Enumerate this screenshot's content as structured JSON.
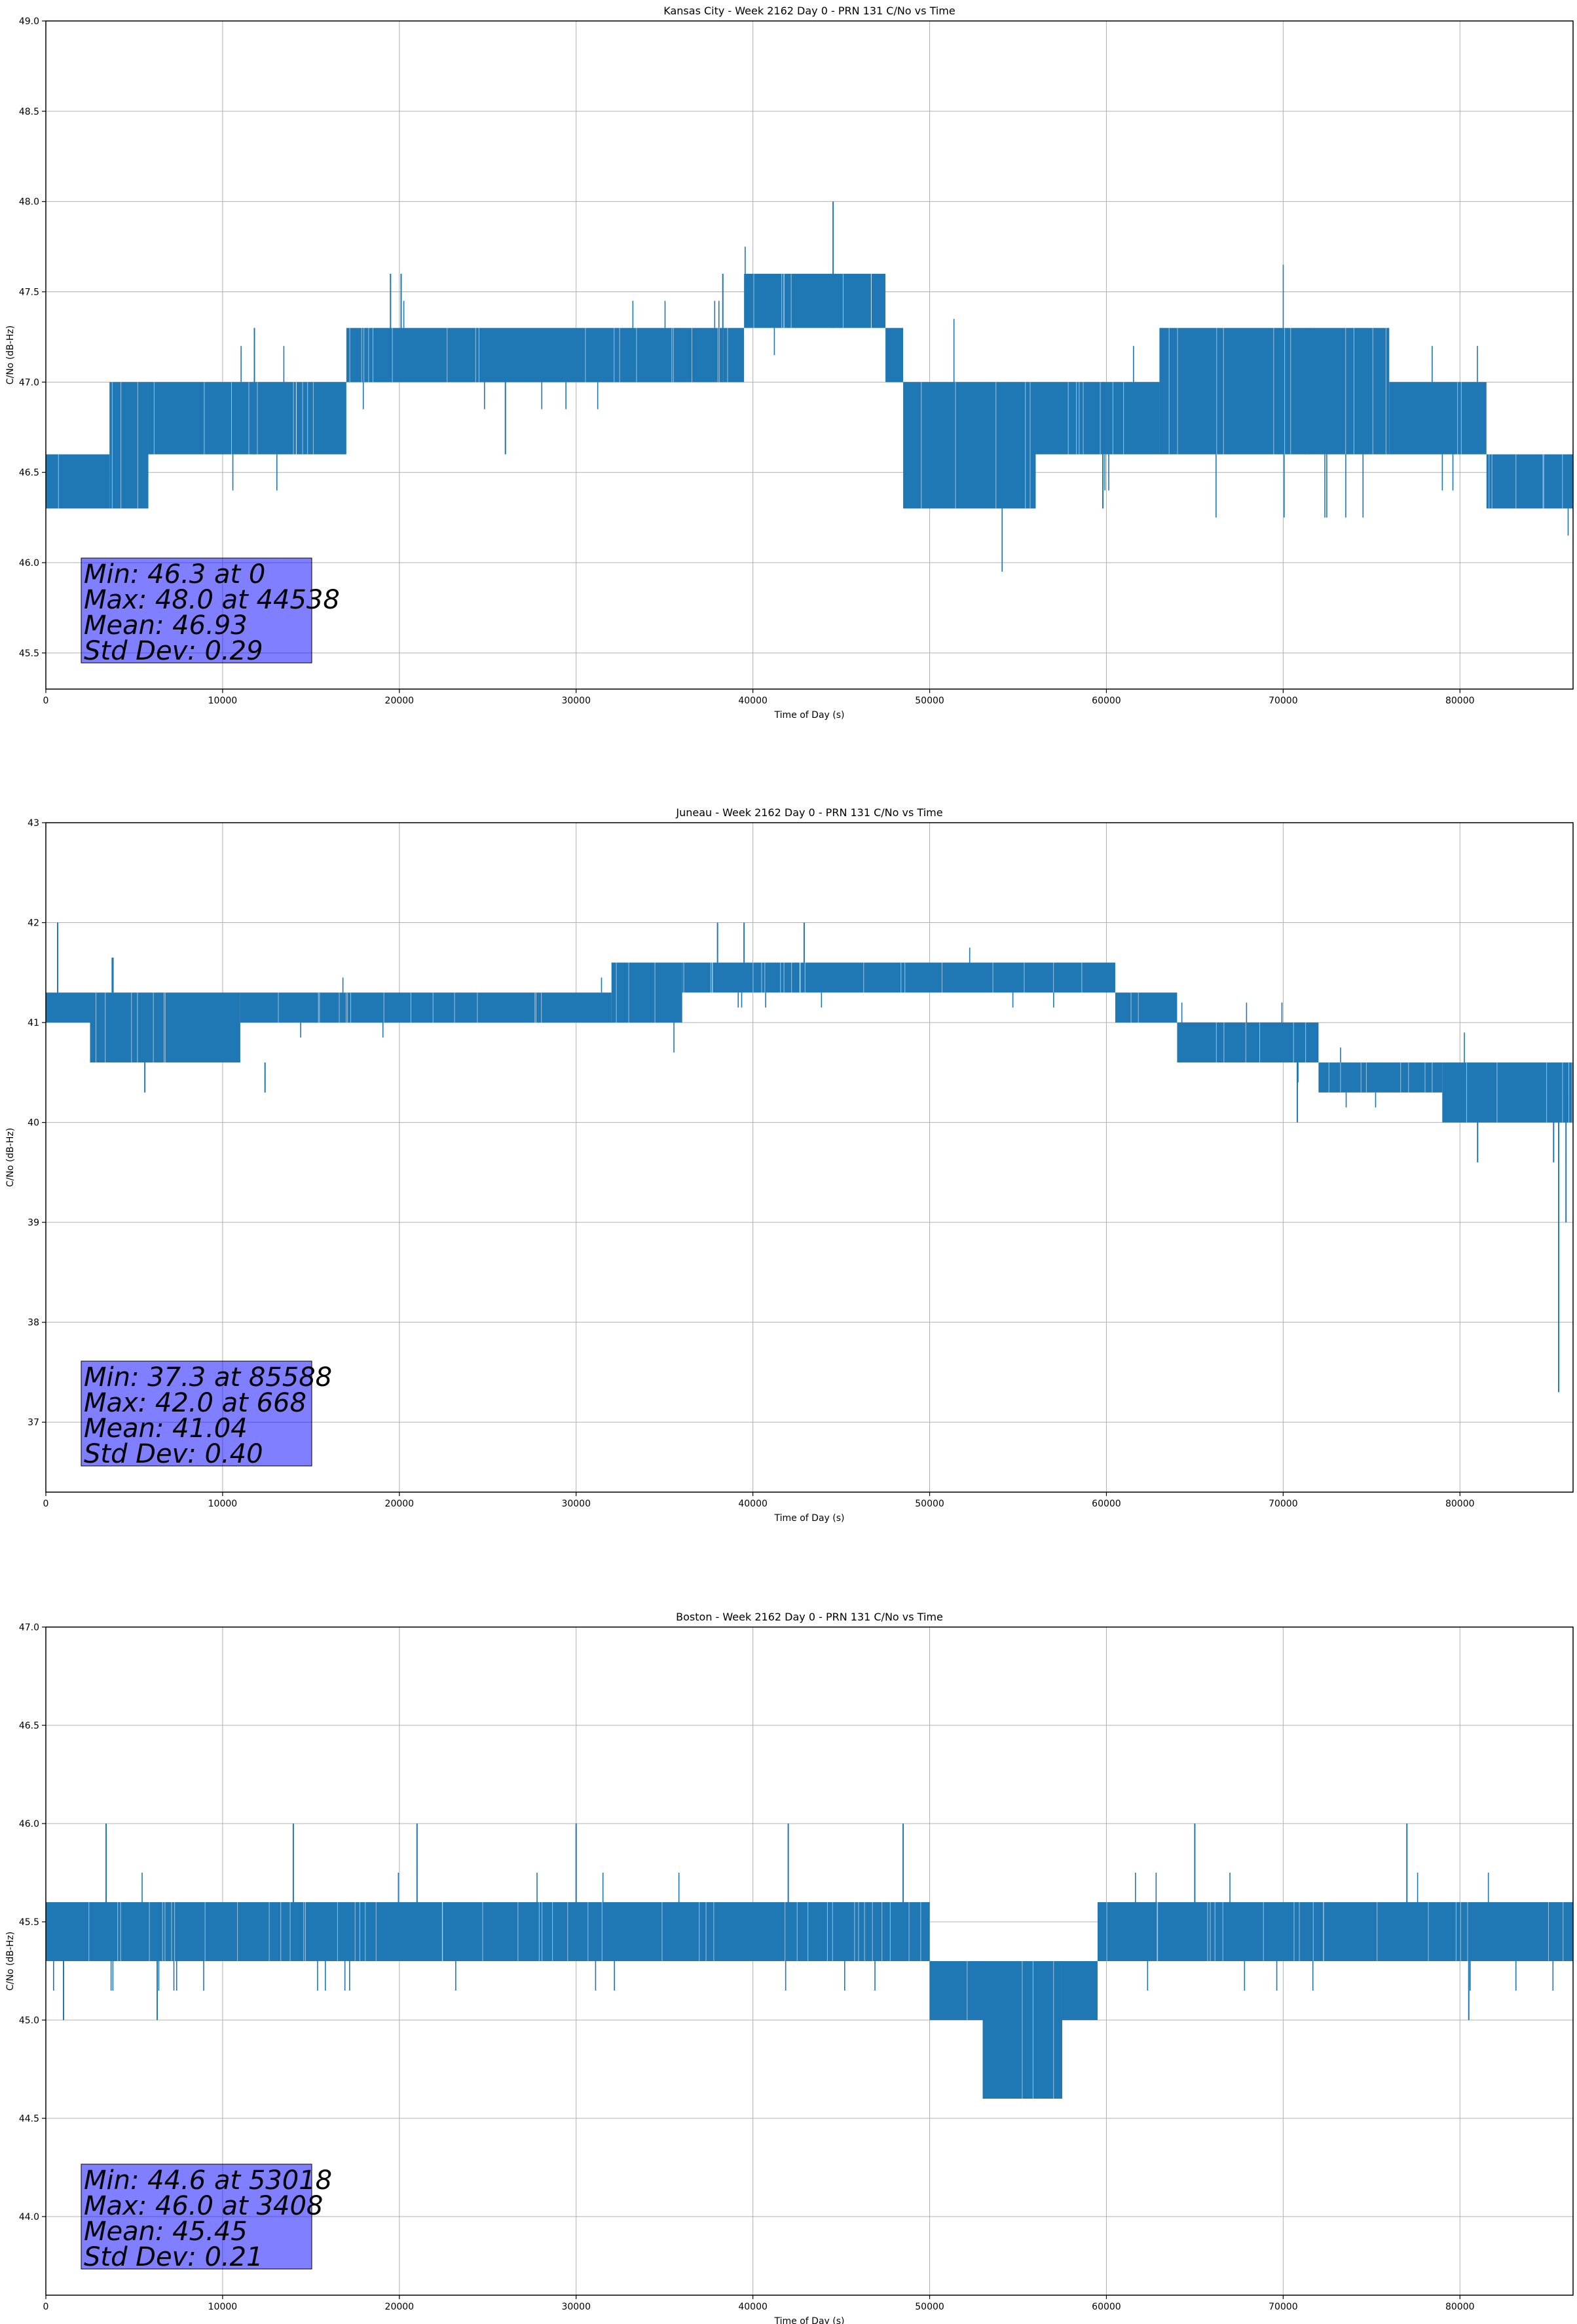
{
  "chart_data": [
    {
      "type": "line",
      "title": "Kansas City - Week 2162 Day 0 - PRN 131 C/No vs Time",
      "xlabel": "Time of Day (s)",
      "ylabel": "C/No (dB-Hz)",
      "xlim": [
        0,
        86400
      ],
      "ylim": [
        45.3,
        49.0
      ],
      "xticks": [
        "0",
        "10000",
        "20000",
        "30000",
        "40000",
        "50000",
        "60000",
        "70000",
        "80000"
      ],
      "yticks": [
        "45.5",
        "46.0",
        "46.5",
        "47.0",
        "47.5",
        "48.0",
        "48.5",
        "49.0"
      ],
      "grid": true,
      "color": "#1f77b4",
      "stats": [
        "Min: 46.3 at 0",
        "Max: 48.0 at 44538",
        "Mean: 46.93",
        "Std Dev: 0.29"
      ],
      "bands": [
        {
          "x0": 0,
          "x1": 3600,
          "lo": 46.3,
          "hi": 46.6
        },
        {
          "x0": 3600,
          "x1": 5800,
          "lo": 46.3,
          "hi": 47.0
        },
        {
          "x0": 5800,
          "x1": 17000,
          "lo": 46.6,
          "hi": 47.0
        },
        {
          "x0": 17000,
          "x1": 39500,
          "lo": 47.0,
          "hi": 47.3
        },
        {
          "x0": 39500,
          "x1": 47500,
          "lo": 47.3,
          "hi": 47.6
        },
        {
          "x0": 47500,
          "x1": 48500,
          "lo": 47.0,
          "hi": 47.3
        },
        {
          "x0": 48500,
          "x1": 56000,
          "lo": 46.3,
          "hi": 47.0
        },
        {
          "x0": 56000,
          "x1": 63000,
          "lo": 46.6,
          "hi": 47.0
        },
        {
          "x0": 63000,
          "x1": 76000,
          "lo": 46.6,
          "hi": 47.3
        },
        {
          "x0": 76000,
          "x1": 81500,
          "lo": 46.6,
          "hi": 47.0
        },
        {
          "x0": 81500,
          "x1": 86400,
          "lo": 46.3,
          "hi": 46.6
        }
      ],
      "spikes": [
        {
          "x": 44538,
          "lo": 47.3,
          "hi": 48.0
        },
        {
          "x": 19500,
          "lo": 47.0,
          "hi": 47.6
        },
        {
          "x": 20100,
          "lo": 47.0,
          "hi": 47.6
        },
        {
          "x": 38300,
          "lo": 47.0,
          "hi": 47.6
        },
        {
          "x": 11800,
          "lo": 46.6,
          "hi": 47.3
        },
        {
          "x": 26000,
          "lo": 46.6,
          "hi": 47.0
        },
        {
          "x": 59800,
          "lo": 46.3,
          "hi": 47.0
        },
        {
          "x": 71500,
          "lo": 46.6,
          "hi": 47.3
        }
      ]
    },
    {
      "type": "line",
      "title": "Juneau - Week 2162 Day 0 - PRN 131 C/No vs Time",
      "xlabel": "Time of Day (s)",
      "ylabel": "C/No (dB-Hz)",
      "xlim": [
        0,
        86400
      ],
      "ylim": [
        36.3,
        43.0
      ],
      "xticks": [
        "0",
        "10000",
        "20000",
        "30000",
        "40000",
        "50000",
        "60000",
        "70000",
        "80000"
      ],
      "yticks": [
        "37",
        "38",
        "39",
        "40",
        "41",
        "42",
        "43"
      ],
      "grid": true,
      "color": "#1f77b4",
      "stats": [
        "Min: 37.3 at 85588",
        "Max: 42.0 at 668",
        "Mean: 41.04",
        "Std Dev: 0.40"
      ],
      "bands": [
        {
          "x0": 0,
          "x1": 2500,
          "lo": 41.0,
          "hi": 41.3
        },
        {
          "x0": 2500,
          "x1": 11000,
          "lo": 40.6,
          "hi": 41.3
        },
        {
          "x0": 11000,
          "x1": 32000,
          "lo": 41.0,
          "hi": 41.3
        },
        {
          "x0": 32000,
          "x1": 36000,
          "lo": 41.0,
          "hi": 41.6
        },
        {
          "x0": 36000,
          "x1": 60500,
          "lo": 41.3,
          "hi": 41.6
        },
        {
          "x0": 60500,
          "x1": 64000,
          "lo": 41.0,
          "hi": 41.3
        },
        {
          "x0": 64000,
          "x1": 72000,
          "lo": 40.6,
          "hi": 41.0
        },
        {
          "x0": 72000,
          "x1": 79000,
          "lo": 40.3,
          "hi": 40.6
        },
        {
          "x0": 79000,
          "x1": 86400,
          "lo": 40.0,
          "hi": 40.6
        }
      ],
      "spikes": [
        {
          "x": 668,
          "lo": 41.3,
          "hi": 42.0
        },
        {
          "x": 85588,
          "lo": 37.3,
          "hi": 40.3
        },
        {
          "x": 86000,
          "lo": 39.0,
          "hi": 40.3
        },
        {
          "x": 85300,
          "lo": 39.6,
          "hi": 40.3
        },
        {
          "x": 81000,
          "lo": 39.6,
          "hi": 40.3
        },
        {
          "x": 38000,
          "lo": 41.6,
          "hi": 42.0
        },
        {
          "x": 39500,
          "lo": 41.6,
          "hi": 42.0
        },
        {
          "x": 42900,
          "lo": 41.6,
          "hi": 42.0
        },
        {
          "x": 5600,
          "lo": 40.3,
          "hi": 40.6
        },
        {
          "x": 12400,
          "lo": 40.3,
          "hi": 40.6
        },
        {
          "x": 70800,
          "lo": 40.0,
          "hi": 40.6
        }
      ]
    },
    {
      "type": "line",
      "title": "Boston - Week 2162 Day 0 - PRN 131 C/No vs Time",
      "xlabel": "Time of Day (s)",
      "ylabel": "C/No (dB-Hz)",
      "xlim": [
        0,
        86400
      ],
      "ylim": [
        43.6,
        47.0
      ],
      "xticks": [
        "0",
        "10000",
        "20000",
        "30000",
        "40000",
        "50000",
        "60000",
        "70000",
        "80000"
      ],
      "yticks": [
        "44.0",
        "44.5",
        "45.0",
        "45.5",
        "46.0",
        "46.5",
        "47.0"
      ],
      "grid": true,
      "color": "#1f77b4",
      "stats": [
        "Min: 44.6 at 53018",
        "Max: 46.0 at 3408",
        "Mean: 45.45",
        "Std Dev: 0.21"
      ],
      "bands": [
        {
          "x0": 0,
          "x1": 50000,
          "lo": 45.3,
          "hi": 45.6
        },
        {
          "x0": 50000,
          "x1": 53000,
          "lo": 45.0,
          "hi": 45.3
        },
        {
          "x0": 53000,
          "x1": 57500,
          "lo": 44.6,
          "hi": 45.3
        },
        {
          "x0": 57500,
          "x1": 59500,
          "lo": 45.0,
          "hi": 45.3
        },
        {
          "x0": 59500,
          "x1": 86400,
          "lo": 45.3,
          "hi": 45.6
        }
      ],
      "spikes": [
        {
          "x": 3408,
          "lo": 45.6,
          "hi": 46.0
        },
        {
          "x": 14000,
          "lo": 45.6,
          "hi": 46.0
        },
        {
          "x": 21000,
          "lo": 45.6,
          "hi": 46.0
        },
        {
          "x": 30000,
          "lo": 45.6,
          "hi": 46.0
        },
        {
          "x": 42000,
          "lo": 45.6,
          "hi": 46.0
        },
        {
          "x": 48500,
          "lo": 45.6,
          "hi": 46.0
        },
        {
          "x": 65000,
          "lo": 45.6,
          "hi": 46.0
        },
        {
          "x": 77000,
          "lo": 45.6,
          "hi": 46.0
        },
        {
          "x": 1000,
          "lo": 45.0,
          "hi": 45.3
        },
        {
          "x": 6300,
          "lo": 45.0,
          "hi": 45.3
        },
        {
          "x": 80500,
          "lo": 45.0,
          "hi": 45.3
        }
      ]
    }
  ]
}
